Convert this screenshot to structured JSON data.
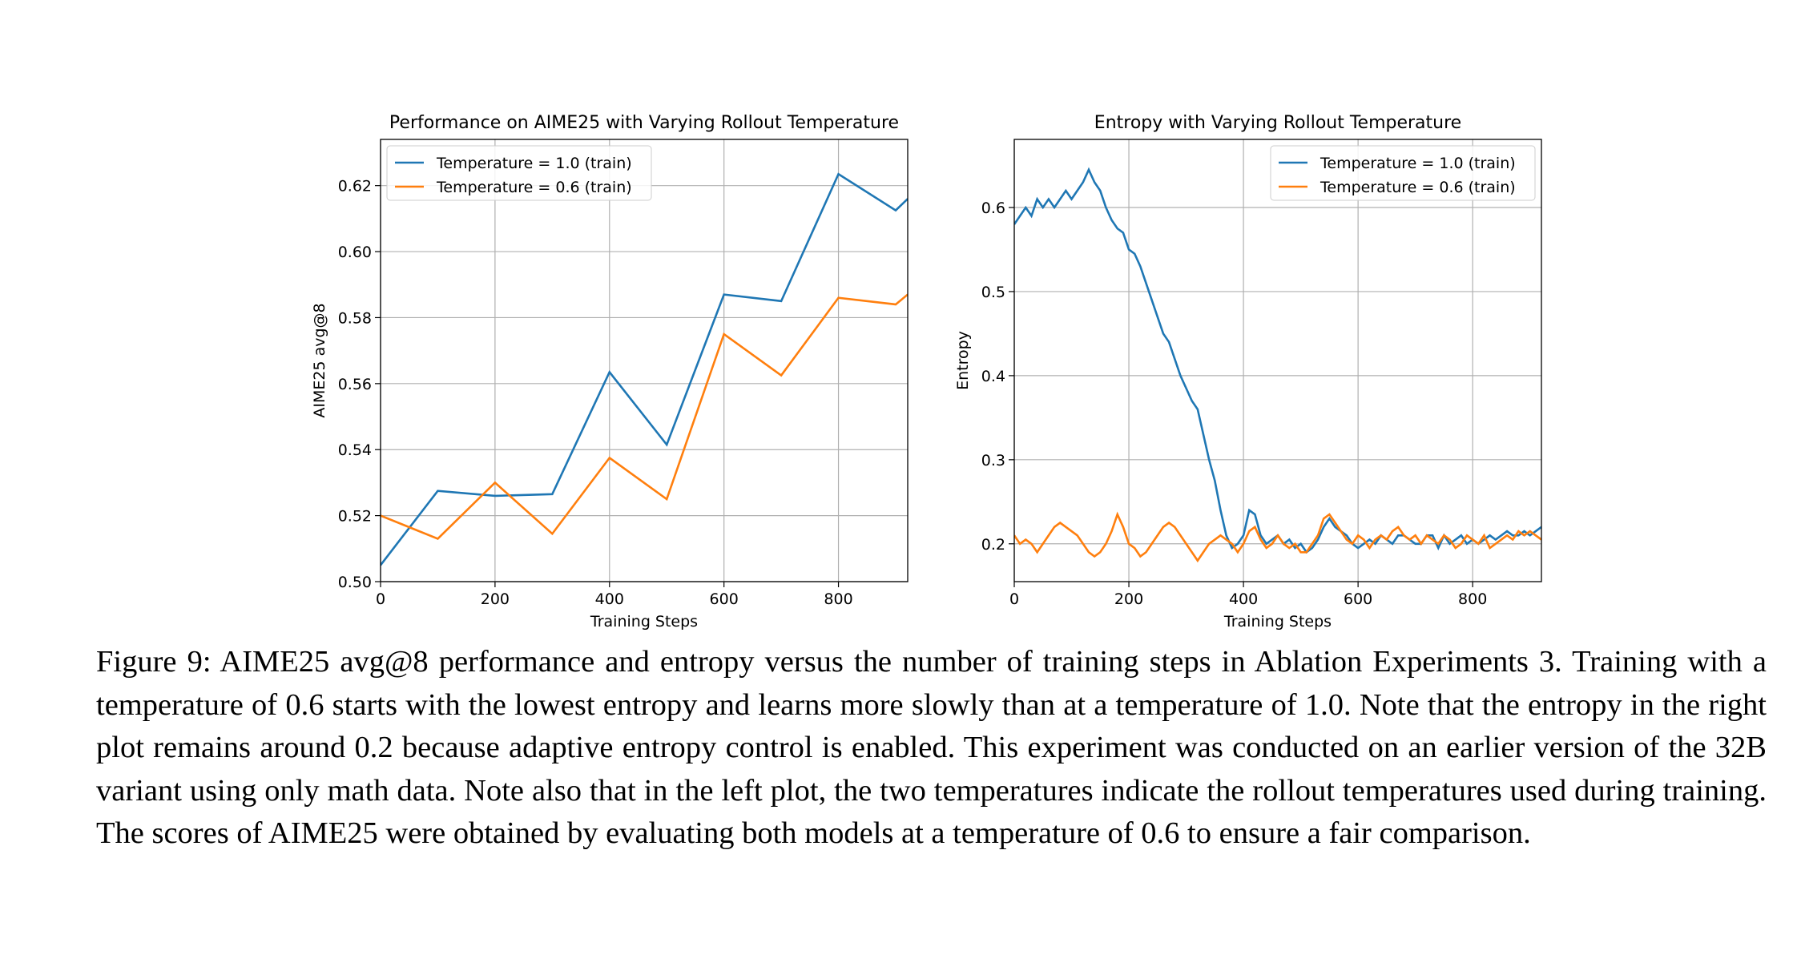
{
  "chart_data": [
    {
      "type": "line",
      "title": "Performance on AIME25 with Varying Rollout Temperature",
      "x_label": "Training Steps",
      "y_label": "AIME25 avg@8",
      "x": [
        0,
        100,
        200,
        300,
        400,
        500,
        600,
        700,
        800,
        900,
        921
      ],
      "series": [
        {
          "name": "Temperature = 1.0 (train)",
          "color": "#1f77b4",
          "values": [
            0.505,
            0.5275,
            0.526,
            0.5265,
            0.5635,
            0.5415,
            0.587,
            0.585,
            0.6235,
            0.6125,
            0.616
          ]
        },
        {
          "name": "Temperature = 0.6 (train)",
          "color": "#ff7f0e",
          "values": [
            0.52,
            0.513,
            0.53,
            0.5145,
            0.5375,
            0.525,
            0.575,
            0.5625,
            0.586,
            0.584,
            0.587
          ]
        }
      ],
      "xlim": [
        0,
        921
      ],
      "ylim": [
        0.5,
        0.634
      ],
      "xticks": [
        0,
        200,
        400,
        600,
        800
      ],
      "yticks": [
        {
          "value": 0.5,
          "label": "0.50"
        },
        0.52,
        0.54,
        0.56,
        0.58,
        {
          "value": 0.6,
          "label": "0.60"
        },
        0.62
      ],
      "grid": true,
      "legend": "upper-left"
    },
    {
      "type": "line",
      "title": "Entropy with Varying Rollout Temperature",
      "x_label": "Training Steps",
      "y_label": "Entropy",
      "x": [
        0,
        10,
        20,
        30,
        40,
        50,
        60,
        70,
        80,
        90,
        100,
        110,
        120,
        130,
        140,
        150,
        160,
        170,
        180,
        190,
        200,
        210,
        220,
        230,
        240,
        250,
        260,
        270,
        280,
        290,
        300,
        310,
        320,
        330,
        340,
        350,
        360,
        370,
        380,
        390,
        400,
        410,
        420,
        430,
        440,
        450,
        460,
        470,
        480,
        490,
        500,
        510,
        520,
        530,
        540,
        550,
        560,
        570,
        580,
        590,
        600,
        610,
        620,
        630,
        640,
        650,
        660,
        670,
        680,
        690,
        700,
        710,
        720,
        730,
        740,
        750,
        760,
        770,
        780,
        790,
        800,
        810,
        820,
        830,
        840,
        850,
        860,
        870,
        880,
        890,
        900,
        910,
        920
      ],
      "series": [
        {
          "name": "Temperature = 1.0 (train)",
          "color": "#1f77b4",
          "values": [
            0.58,
            0.59,
            0.6,
            0.59,
            0.61,
            0.6,
            0.61,
            0.6,
            0.61,
            0.62,
            0.61,
            0.62,
            0.63,
            0.645,
            0.63,
            0.62,
            0.6,
            0.585,
            0.575,
            0.57,
            0.55,
            0.545,
            0.53,
            0.51,
            0.49,
            0.47,
            0.45,
            0.44,
            0.42,
            0.4,
            0.385,
            0.37,
            0.36,
            0.33,
            0.3,
            0.275,
            0.24,
            0.21,
            0.195,
            0.2,
            0.21,
            0.24,
            0.235,
            0.21,
            0.2,
            0.205,
            0.21,
            0.2,
            0.205,
            0.195,
            0.2,
            0.19,
            0.195,
            0.205,
            0.22,
            0.23,
            0.22,
            0.215,
            0.21,
            0.2,
            0.195,
            0.2,
            0.205,
            0.2,
            0.21,
            0.205,
            0.2,
            0.21,
            0.21,
            0.205,
            0.2,
            0.2,
            0.21,
            0.21,
            0.195,
            0.21,
            0.2,
            0.205,
            0.21,
            0.2,
            0.205,
            0.2,
            0.205,
            0.21,
            0.205,
            0.21,
            0.215,
            0.21,
            0.21,
            0.215,
            0.21,
            0.215,
            0.22
          ]
        },
        {
          "name": "Temperature = 0.6 (train)",
          "color": "#ff7f0e",
          "values": [
            0.21,
            0.2,
            0.205,
            0.2,
            0.19,
            0.2,
            0.21,
            0.22,
            0.225,
            0.22,
            0.215,
            0.21,
            0.2,
            0.19,
            0.185,
            0.19,
            0.2,
            0.215,
            0.235,
            0.22,
            0.2,
            0.195,
            0.185,
            0.19,
            0.2,
            0.21,
            0.22,
            0.225,
            0.22,
            0.21,
            0.2,
            0.19,
            0.18,
            0.19,
            0.2,
            0.205,
            0.21,
            0.205,
            0.2,
            0.19,
            0.2,
            0.215,
            0.22,
            0.205,
            0.195,
            0.2,
            0.21,
            0.2,
            0.195,
            0.2,
            0.19,
            0.19,
            0.2,
            0.21,
            0.23,
            0.235,
            0.225,
            0.215,
            0.205,
            0.2,
            0.21,
            0.205,
            0.195,
            0.205,
            0.21,
            0.205,
            0.215,
            0.22,
            0.21,
            0.205,
            0.21,
            0.2,
            0.21,
            0.205,
            0.2,
            0.21,
            0.205,
            0.195,
            0.2,
            0.21,
            0.205,
            0.2,
            0.21,
            0.195,
            0.2,
            0.205,
            0.21,
            0.205,
            0.215,
            0.21,
            0.215,
            0.21,
            0.205
          ]
        }
      ],
      "xlim": [
        0,
        920
      ],
      "ylim": [
        0.155,
        0.681
      ],
      "xticks": [
        0,
        200,
        400,
        600,
        800
      ],
      "yticks": [
        0.2,
        0.3,
        0.4,
        0.5,
        0.6
      ],
      "grid": true,
      "legend": "upper-right"
    }
  ],
  "caption": "Figure 9: AIME25 avg@8 performance and entropy versus the number of training steps in Ablation Experiments 3. Training with a temperature of 0.6 starts with the lowest entropy and learns more slowly than at a temperature of 1.0. Note that the entropy in the right plot remains around 0.2 because adaptive entropy control is enabled. This experiment was conducted on an earlier version of the 32B variant using only math data. Note also that in the left plot, the two temperatures indicate the rollout temperatures used during training. The scores of AIME25 were obtained by evaluating both models at a temperature of 0.6 to ensure a fair comparison."
}
